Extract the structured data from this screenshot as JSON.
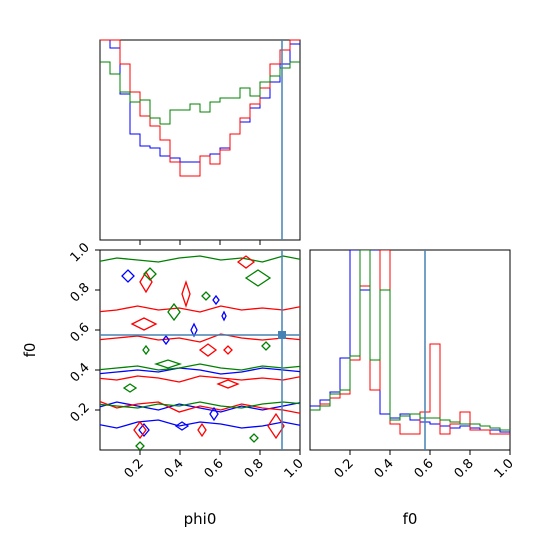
{
  "chart_data": {
    "type": "corner",
    "parameters": [
      "phi0",
      "f0"
    ],
    "truth": {
      "phi0": 0.91,
      "f0": 0.575
    },
    "truth_color": "#4682b4",
    "series": [
      {
        "color": "#0000ff"
      },
      {
        "color": "#ff0000"
      },
      {
        "color": "#008000"
      }
    ],
    "marginal_phi0": {
      "bins": [
        0.0,
        0.05,
        0.1,
        0.15,
        0.2,
        0.25,
        0.3,
        0.35,
        0.4,
        0.45,
        0.5,
        0.55,
        0.6,
        0.65,
        0.7,
        0.75,
        0.8,
        0.85,
        0.9,
        0.95,
        1.0
      ],
      "ylim": [
        0,
        1
      ],
      "series_values": [
        [
          1.0,
          0.96,
          0.73,
          0.53,
          0.47,
          0.46,
          0.42,
          0.41,
          0.39,
          0.39,
          0.42,
          0.43,
          0.46,
          0.53,
          0.59,
          0.66,
          0.71,
          0.79,
          0.88,
          0.98
        ],
        [
          1.0,
          1.0,
          0.88,
          0.74,
          0.62,
          0.57,
          0.5,
          0.39,
          0.32,
          0.32,
          0.42,
          0.38,
          0.45,
          0.53,
          0.61,
          0.68,
          0.76,
          0.88,
          0.95,
          1.0
        ],
        [
          0.89,
          0.83,
          0.74,
          0.69,
          0.7,
          0.61,
          0.58,
          0.65,
          0.65,
          0.68,
          0.64,
          0.69,
          0.71,
          0.71,
          0.76,
          0.72,
          0.79,
          0.82,
          0.86,
          0.89
        ]
      ],
      "xticks": []
    },
    "marginal_f0": {
      "bins": [
        0.0,
        0.05,
        0.1,
        0.15,
        0.2,
        0.25,
        0.3,
        0.35,
        0.4,
        0.45,
        0.5,
        0.55,
        0.6,
        0.65,
        0.7,
        0.75,
        0.8,
        0.85,
        0.9,
        0.95,
        1.0
      ],
      "ylim": [
        0,
        1
      ],
      "series_values": [
        [
          0.22,
          0.25,
          0.29,
          0.46,
          1.0,
          0.8,
          1.0,
          0.18,
          0.16,
          0.18,
          0.15,
          0.14,
          0.13,
          0.12,
          0.11,
          0.12,
          0.11,
          0.1,
          0.1,
          0.09
        ],
        [
          0.2,
          0.23,
          0.26,
          0.28,
          0.45,
          0.82,
          0.3,
          1.0,
          0.13,
          0.08,
          0.08,
          0.19,
          0.53,
          0.08,
          0.13,
          0.19,
          0.1,
          0.1,
          0.08,
          0.08
        ],
        [
          0.2,
          0.22,
          0.28,
          0.3,
          0.47,
          1.0,
          0.45,
          0.8,
          0.15,
          0.17,
          0.18,
          0.16,
          0.16,
          0.15,
          0.14,
          0.13,
          0.13,
          0.12,
          0.11,
          0.1
        ]
      ]
    },
    "joint": {
      "x": "phi0",
      "y": "f0",
      "xlim": [
        0,
        1
      ],
      "ylim": [
        0,
        1
      ],
      "xticks": [
        "0.2",
        "0.4",
        "0.6",
        "0.8",
        "1.0"
      ],
      "yticks": [
        "0.2",
        "0.4",
        "0.6",
        "0.8",
        "1.0"
      ],
      "contour_bands": [
        {
          "series": 0,
          "y": [
            0.21,
            0.24,
            0.22,
            0.2,
            0.23,
            0.21,
            0.19,
            0.22,
            0.2,
            0.22,
            0.24
          ]
        },
        {
          "series": 0,
          "y": [
            0.38,
            0.39,
            0.4,
            0.39,
            0.41,
            0.4,
            0.38,
            0.39,
            0.41,
            0.4,
            0.39
          ]
        },
        {
          "series": 0,
          "y": [
            0.13,
            0.11,
            0.14,
            0.15,
            0.12,
            0.14,
            0.13,
            0.11,
            0.12,
            0.14,
            0.12
          ]
        },
        {
          "series": 1,
          "y": [
            0.25,
            0.21,
            0.23,
            0.24,
            0.19,
            0.22,
            0.2,
            0.23,
            0.21,
            0.2,
            0.18
          ]
        },
        {
          "series": 1,
          "y": [
            0.36,
            0.35,
            0.37,
            0.36,
            0.34,
            0.37,
            0.36,
            0.35,
            0.36,
            0.35,
            0.37
          ]
        },
        {
          "series": 1,
          "y": [
            0.55,
            0.56,
            0.57,
            0.55,
            0.56,
            0.54,
            0.58,
            0.56,
            0.55,
            0.56,
            0.55
          ]
        },
        {
          "series": 1,
          "y": [
            0.69,
            0.7,
            0.72,
            0.7,
            0.71,
            0.69,
            0.72,
            0.7,
            0.71,
            0.7,
            0.72
          ]
        },
        {
          "series": 2,
          "y": [
            0.23,
            0.22,
            0.21,
            0.23,
            0.22,
            0.24,
            0.22,
            0.21,
            0.23,
            0.24,
            0.23
          ]
        },
        {
          "series": 2,
          "y": [
            0.4,
            0.41,
            0.42,
            0.4,
            0.41,
            0.43,
            0.41,
            0.4,
            0.42,
            0.41,
            0.42
          ]
        },
        {
          "series": 2,
          "y": [
            0.94,
            0.96,
            0.95,
            0.94,
            0.96,
            0.97,
            0.95,
            0.96,
            0.94,
            0.97,
            0.95
          ]
        }
      ],
      "contour_islands": [
        {
          "series": 0,
          "x": 0.47,
          "y": 0.6,
          "rx": 0.015,
          "ry": 0.03
        },
        {
          "series": 0,
          "x": 0.62,
          "y": 0.67,
          "rx": 0.01,
          "ry": 0.02
        },
        {
          "series": 0,
          "x": 0.14,
          "y": 0.87,
          "rx": 0.03,
          "ry": 0.03
        },
        {
          "series": 0,
          "x": 0.33,
          "y": 0.55,
          "rx": 0.015,
          "ry": 0.02
        },
        {
          "series": 0,
          "x": 0.57,
          "y": 0.18,
          "rx": 0.02,
          "ry": 0.03
        },
        {
          "series": 0,
          "x": 0.22,
          "y": 0.1,
          "rx": 0.025,
          "ry": 0.03
        },
        {
          "series": 0,
          "x": 0.58,
          "y": 0.75,
          "rx": 0.015,
          "ry": 0.02
        },
        {
          "series": 0,
          "x": 0.41,
          "y": 0.12,
          "rx": 0.03,
          "ry": 0.02
        },
        {
          "series": 1,
          "x": 0.23,
          "y": 0.84,
          "rx": 0.03,
          "ry": 0.05
        },
        {
          "series": 1,
          "x": 0.43,
          "y": 0.78,
          "rx": 0.02,
          "ry": 0.06
        },
        {
          "series": 1,
          "x": 0.22,
          "y": 0.63,
          "rx": 0.06,
          "ry": 0.03
        },
        {
          "series": 1,
          "x": 0.73,
          "y": 0.94,
          "rx": 0.04,
          "ry": 0.03
        },
        {
          "series": 1,
          "x": 0.54,
          "y": 0.5,
          "rx": 0.04,
          "ry": 0.03
        },
        {
          "series": 1,
          "x": 0.88,
          "y": 0.12,
          "rx": 0.04,
          "ry": 0.06
        },
        {
          "series": 1,
          "x": 0.64,
          "y": 0.33,
          "rx": 0.05,
          "ry": 0.02
        },
        {
          "series": 1,
          "x": 0.2,
          "y": 0.1,
          "rx": 0.03,
          "ry": 0.04
        },
        {
          "series": 1,
          "x": 0.51,
          "y": 0.1,
          "rx": 0.02,
          "ry": 0.03
        },
        {
          "series": 1,
          "x": 0.64,
          "y": 0.5,
          "rx": 0.02,
          "ry": 0.02
        },
        {
          "series": 2,
          "x": 0.25,
          "y": 0.88,
          "rx": 0.03,
          "ry": 0.03
        },
        {
          "series": 2,
          "x": 0.53,
          "y": 0.77,
          "rx": 0.02,
          "ry": 0.02
        },
        {
          "series": 2,
          "x": 0.79,
          "y": 0.86,
          "rx": 0.06,
          "ry": 0.04
        },
        {
          "series": 2,
          "x": 0.37,
          "y": 0.69,
          "rx": 0.03,
          "ry": 0.04
        },
        {
          "series": 2,
          "x": 0.15,
          "y": 0.31,
          "rx": 0.03,
          "ry": 0.02
        },
        {
          "series": 2,
          "x": 0.2,
          "y": 0.02,
          "rx": 0.02,
          "ry": 0.02
        },
        {
          "series": 2,
          "x": 0.77,
          "y": 0.06,
          "rx": 0.02,
          "ry": 0.02
        },
        {
          "series": 2,
          "x": 0.34,
          "y": 0.43,
          "rx": 0.06,
          "ry": 0.02
        },
        {
          "series": 2,
          "x": 0.23,
          "y": 0.5,
          "rx": 0.015,
          "ry": 0.02
        },
        {
          "series": 2,
          "x": 0.83,
          "y": 0.52,
          "rx": 0.02,
          "ry": 0.02
        }
      ]
    },
    "xlabels": [
      "phi0",
      "f0"
    ],
    "ylabel": "f0",
    "f0_xticks": [
      "0.2",
      "0.4",
      "0.6",
      "0.8",
      "1.0"
    ]
  }
}
